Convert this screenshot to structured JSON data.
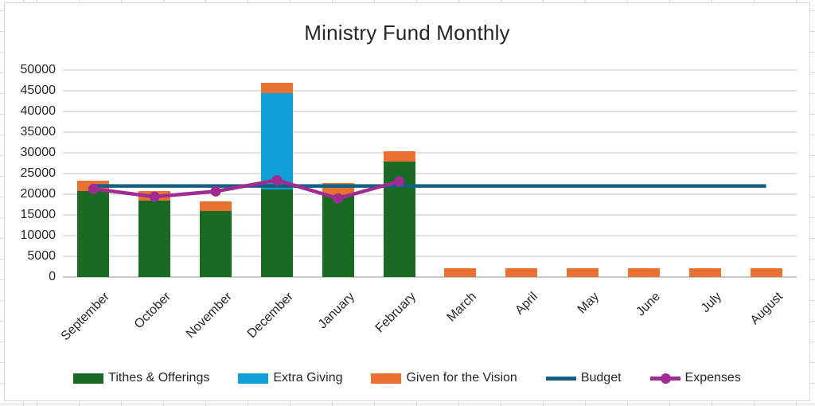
{
  "colors": {
    "worksheet_gridline": "#D9D9D9",
    "chart_border": "#D9D9D9",
    "plot_background": "#FFFFFF",
    "text": "#262626"
  },
  "chart_data": {
    "type": "combo-stacked-bar-line",
    "title": "Ministry Fund Monthly",
    "legend_position": "bottom",
    "grid": true,
    "categories": [
      "September",
      "October",
      "November",
      "December",
      "January",
      "February",
      "March",
      "April",
      "May",
      "June",
      "July",
      "August"
    ],
    "bar_series": [
      {
        "name": "Tithes & Offerings",
        "color": "#196B24",
        "values": [
          20700,
          18400,
          15900,
          21200,
          19900,
          27800,
          0,
          0,
          0,
          0,
          0,
          0
        ]
      },
      {
        "name": "Extra Giving",
        "color": "#0F9ED5",
        "values": [
          0,
          0,
          0,
          23300,
          0,
          0,
          0,
          0,
          0,
          0,
          0,
          0
        ]
      },
      {
        "name": "Given for the Vision",
        "color": "#E97132",
        "values": [
          2600,
          2400,
          2400,
          2500,
          2700,
          2600,
          2200,
          2200,
          2200,
          2200,
          2200,
          2200
        ]
      }
    ],
    "line_series": [
      {
        "name": "Budget",
        "color": "#156082",
        "marker": false,
        "values": [
          22000,
          22000,
          22000,
          22000,
          22000,
          22000,
          22000,
          22000,
          22000,
          22000,
          22000,
          22000
        ]
      },
      {
        "name": "Expenses",
        "color": "#A02B93",
        "marker": true,
        "values": [
          21300,
          19400,
          20700,
          23400,
          19000,
          23100,
          null,
          null,
          null,
          null,
          null,
          null
        ]
      }
    ],
    "y_axis": {
      "min": 0,
      "max": 50000,
      "step": 5000,
      "tick_labels": [
        "0",
        "5000",
        "10000",
        "15000",
        "20000",
        "25000",
        "30000",
        "35000",
        "40000",
        "45000",
        "50000"
      ]
    }
  }
}
